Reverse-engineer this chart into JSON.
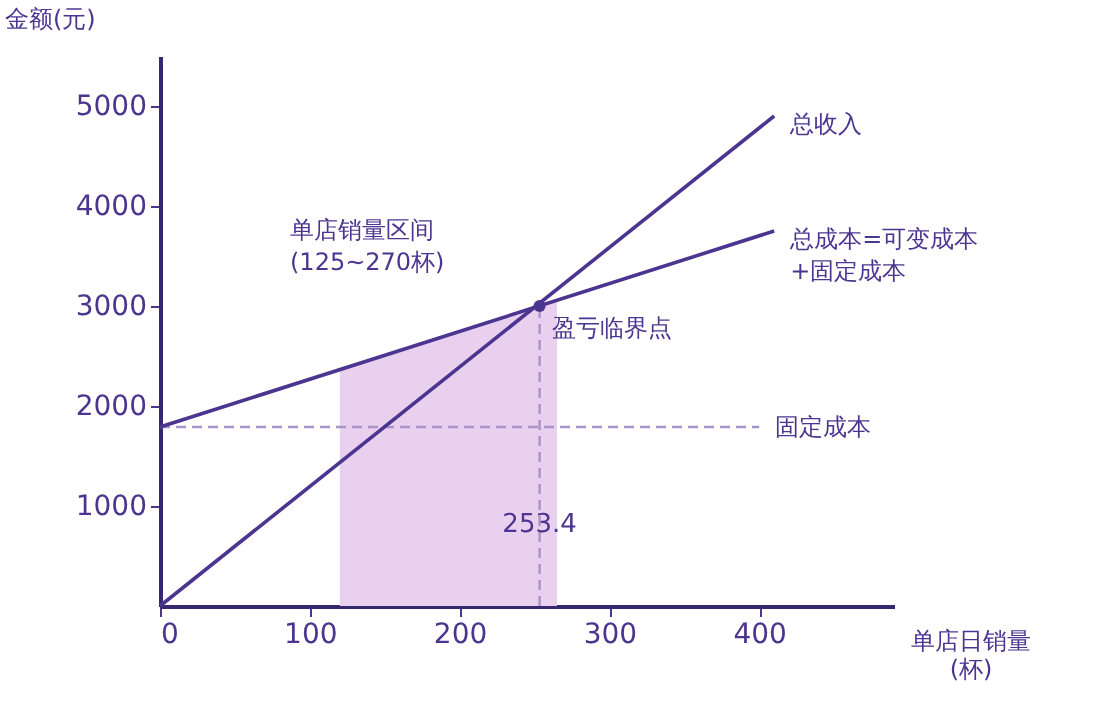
{
  "chart_data": {
    "type": "line",
    "xlabel": "单店日销量\n(杯)",
    "ylabel": "金额(元)",
    "xlim": [
      0,
      490
    ],
    "ylim": [
      0,
      5500
    ],
    "xticks": [
      0,
      100,
      200,
      300,
      400
    ],
    "yticks": [
      1000,
      2000,
      3000,
      4000,
      5000
    ],
    "grid": false,
    "series": [
      {
        "name": "总收入",
        "color": "#4b3590",
        "x": [
          0,
          410
        ],
        "values": [
          0,
          4900
        ]
      },
      {
        "name": "总成本=可变成本+固定成本",
        "color": "#4b3590",
        "x": [
          0,
          410
        ],
        "values": [
          1790,
          3750
        ]
      },
      {
        "type": "scatter",
        "color": "#4b3590",
        "x": [
          253.4
        ],
        "values": [
          3000
        ]
      }
    ],
    "ref_lines": [
      {
        "axis": "y",
        "value": 1790,
        "label": "固定成本",
        "color": "#a895c8",
        "line_style": "dashed"
      },
      {
        "axis": "x",
        "value": 253.4,
        "label": "253.4",
        "color": "#a895c8",
        "line_style": "dashed"
      }
    ],
    "bands": [
      {
        "axis": "x",
        "from": 120,
        "to": 265,
        "color": "#e9d0ee"
      }
    ],
    "annotations": [
      "单店销量区间\n(125~270杯)",
      {
        "text": "盈亏临界点",
        "x": 253.4,
        "y": 3000
      }
    ]
  }
}
